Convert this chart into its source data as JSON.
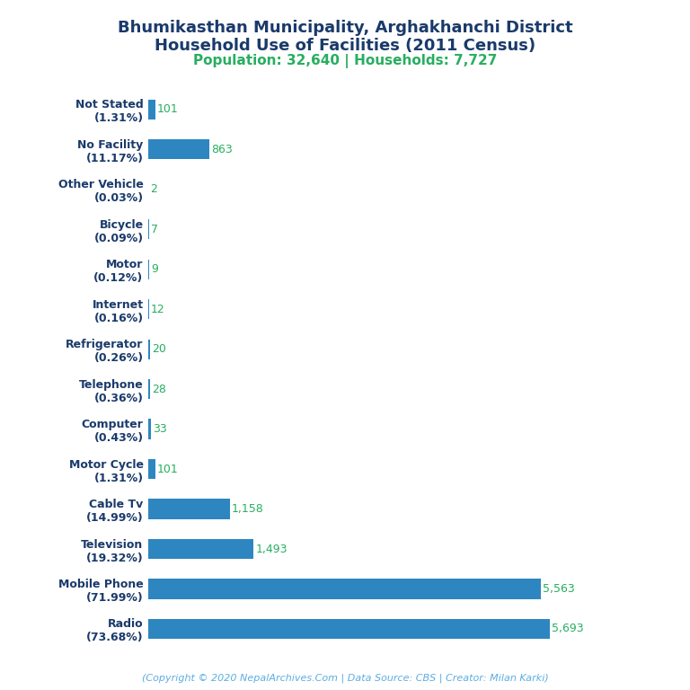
{
  "title_line1": "Bhumikasthan Municipality, Arghakhanchi District",
  "title_line2": "Household Use of Facilities (2011 Census)",
  "subtitle": "Population: 32,640 | Households: 7,727",
  "footer": "(Copyright © 2020 NepalArchives.Com | Data Source: CBS | Creator: Milan Karki)",
  "categories": [
    "Not Stated\n(1.31%)",
    "No Facility\n(11.17%)",
    "Other Vehicle\n(0.03%)",
    "Bicycle\n(0.09%)",
    "Motor\n(0.12%)",
    "Internet\n(0.16%)",
    "Refrigerator\n(0.26%)",
    "Telephone\n(0.36%)",
    "Computer\n(0.43%)",
    "Motor Cycle\n(1.31%)",
    "Cable Tv\n(14.99%)",
    "Television\n(19.32%)",
    "Mobile Phone\n(71.99%)",
    "Radio\n(73.68%)"
  ],
  "values": [
    101,
    863,
    2,
    7,
    9,
    12,
    20,
    28,
    33,
    101,
    1158,
    1493,
    5563,
    5693
  ],
  "bar_color": "#2e86c1",
  "value_color": "#27ae60",
  "title_color": "#1a3a6b",
  "subtitle_color": "#27ae60",
  "footer_color": "#5dade2",
  "background_color": "#ffffff",
  "title_fontsize": 13,
  "subtitle_fontsize": 11,
  "label_fontsize": 9,
  "value_fontsize": 9,
  "footer_fontsize": 8
}
